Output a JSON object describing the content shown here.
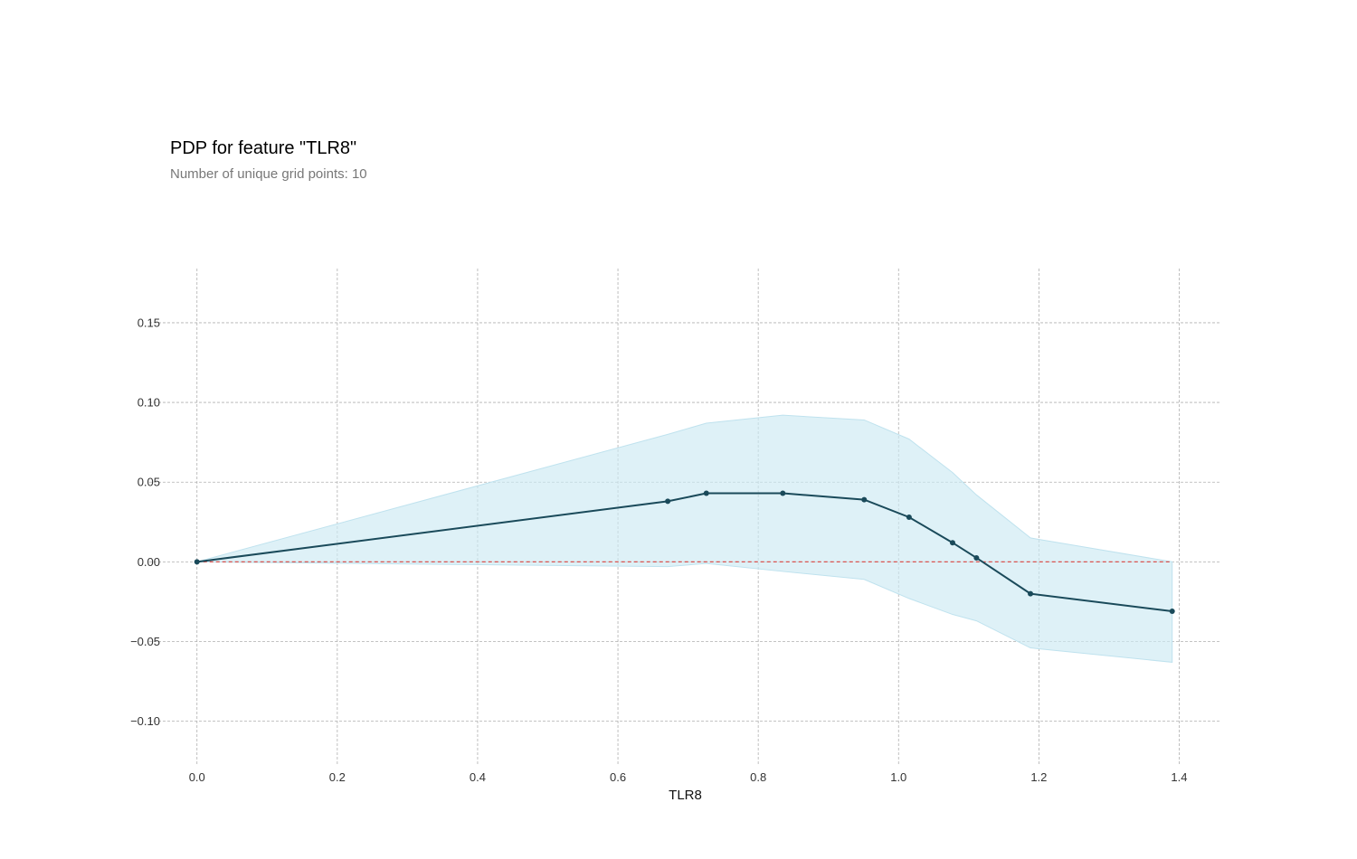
{
  "title": "PDP for feature \"TLR8\"",
  "subtitle": "Number of unique grid points: 10",
  "chart_data": {
    "type": "line",
    "xlabel": "TLR8",
    "ylabel": "",
    "xlim": [
      -0.068,
      1.46
    ],
    "ylim": [
      -0.128,
      0.184
    ],
    "xticks": [
      0.0,
      0.2,
      0.4,
      0.6,
      0.8,
      1.0,
      1.2,
      1.4
    ],
    "xtick_labels": [
      "0.0",
      "0.2",
      "0.4",
      "0.6",
      "0.8",
      "1.0",
      "1.2",
      "1.4"
    ],
    "yticks": [
      0.15,
      0.1,
      0.05,
      0.0,
      -0.05,
      -0.1
    ],
    "ytick_labels": [
      "0.15",
      "0.10",
      "0.05",
      "0.00",
      "−0.05",
      "−0.10"
    ],
    "grid": true,
    "series": [
      {
        "x": [
          0.0,
          0.671,
          0.726,
          0.835,
          0.951,
          1.015,
          1.077,
          1.111,
          1.188,
          1.39
        ],
        "y": [
          0.0,
          0.038,
          0.043,
          0.043,
          0.039,
          0.028,
          0.012,
          0.0025,
          -0.02,
          -0.031
        ],
        "upper": [
          0.0,
          0.08,
          0.087,
          0.092,
          0.089,
          0.077,
          0.056,
          0.042,
          0.015,
          0.0
        ],
        "lower": [
          0.0,
          -0.003,
          -0.001,
          -0.006,
          -0.011,
          -0.023,
          -0.033,
          -0.037,
          -0.054,
          -0.063
        ]
      }
    ],
    "reference_line": {
      "y": 0.0,
      "style": "dashed"
    },
    "colors": {
      "line": "#1a4a5a",
      "band": "#cdeaf3",
      "reference": "#d9534f",
      "grid": "#b0b0b0"
    }
  }
}
